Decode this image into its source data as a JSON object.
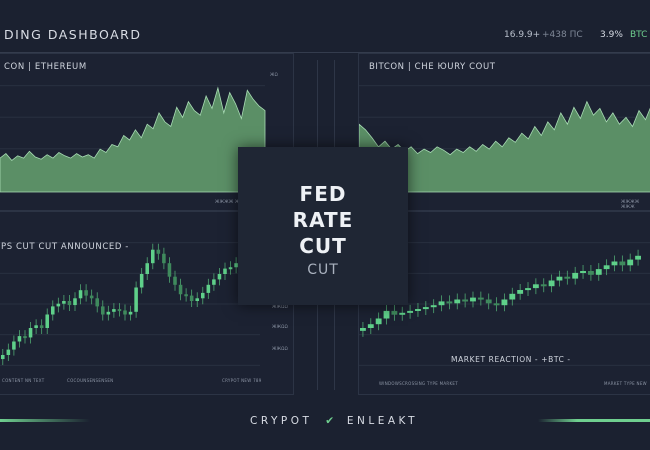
{
  "header": {
    "title": "DING DASHBOARD",
    "ticker_price": "16.9.9+",
    "ticker_change": "+438 ПС",
    "ticker_pct": "3.9%",
    "ticker_symbol": "BTC"
  },
  "colors": {
    "background": "#1b2130",
    "accent": "#6fcf8f",
    "area_fill": "#5b8f66",
    "candle": "#5fd08a"
  },
  "panels": {
    "top_left": {
      "label": "CON | ETHEREUM",
      "axis_label": "ЖΩ",
      "footer": "ЖЖЖЖ ЖЖЖ"
    },
    "top_right": {
      "label": "BITCON | CHE ЮURY COUT",
      "axis_label": "ЖΩ",
      "footer": "ЖЖЖЖ ЖЖЖ"
    },
    "bottom_left": {
      "label": "PS CUT CUT ANNOUNCED -",
      "axis_ticks": [
        "ЖΩΩ",
        "ЖЖΩΩ",
        "ЖЖΩΩ",
        "ЖЖΩΩ"
      ],
      "footer_left": "CONTENT NN TEXT",
      "footer_mid": "COCOUNSENSENSEN",
      "footer_right": "CRYPOT NEW 789"
    },
    "bottom_right": {
      "label": "MARKET REACTION - +BTC -",
      "footer_left": "WINDOWSCROSSING TYPE MARKET",
      "footer_right": "MARKET TYPE NEW"
    }
  },
  "center_card": {
    "line1": "FED",
    "line2": "RATE",
    "line3": "CUT",
    "line4": "CUT"
  },
  "footer": {
    "brand_left": "CRYPOT",
    "brand_right": "ENLEAKT",
    "logo_icon": "check-icon"
  },
  "chart_data": [
    {
      "type": "area",
      "series": [
        {
          "values": [
            30,
            34,
            28,
            32,
            30,
            36,
            31,
            29,
            33,
            30,
            35,
            32,
            30,
            34,
            31,
            33,
            30,
            38,
            35,
            42,
            40,
            50,
            46,
            55,
            48,
            60,
            56,
            70,
            62,
            58,
            75,
            66,
            80,
            72,
            68,
            85,
            74,
            92,
            70,
            88,
            78,
            65,
            90,
            82,
            76,
            72
          ]
        }
      ]
    },
    {
      "type": "area",
      "series": [
        {
          "values": [
            60,
            55,
            48,
            40,
            45,
            38,
            42,
            36,
            40,
            34,
            38,
            35,
            40,
            37,
            33,
            38,
            35,
            40,
            36,
            42,
            38,
            45,
            40,
            48,
            44,
            52,
            47,
            58,
            50,
            62,
            55,
            70,
            60,
            75,
            65,
            80,
            68,
            74,
            62,
            70,
            60,
            66,
            58,
            72,
            64,
            78
          ]
        }
      ]
    },
    {
      "type": "candlestick",
      "series": [
        {
          "values": [
            20,
            24,
            30,
            34,
            33,
            40,
            42,
            40,
            50,
            56,
            58,
            60,
            57,
            62,
            68,
            64,
            62,
            56,
            50,
            52,
            54,
            53,
            50,
            52,
            70,
            80,
            88,
            98,
            95,
            88,
            78,
            72,
            65,
            64,
            60,
            62,
            66,
            72,
            76,
            80,
            84,
            85,
            88,
            92,
            95
          ]
        }
      ]
    },
    {
      "type": "candlestick",
      "series": [
        {
          "values": [
            20,
            24,
            30,
            38,
            34,
            36,
            38,
            40,
            42,
            44,
            48,
            46,
            50,
            48,
            52,
            50,
            46,
            44,
            50,
            56,
            60,
            62,
            66,
            64,
            70,
            74,
            72,
            78,
            80,
            76,
            82,
            86,
            90,
            86,
            92,
            96
          ]
        }
      ]
    }
  ]
}
